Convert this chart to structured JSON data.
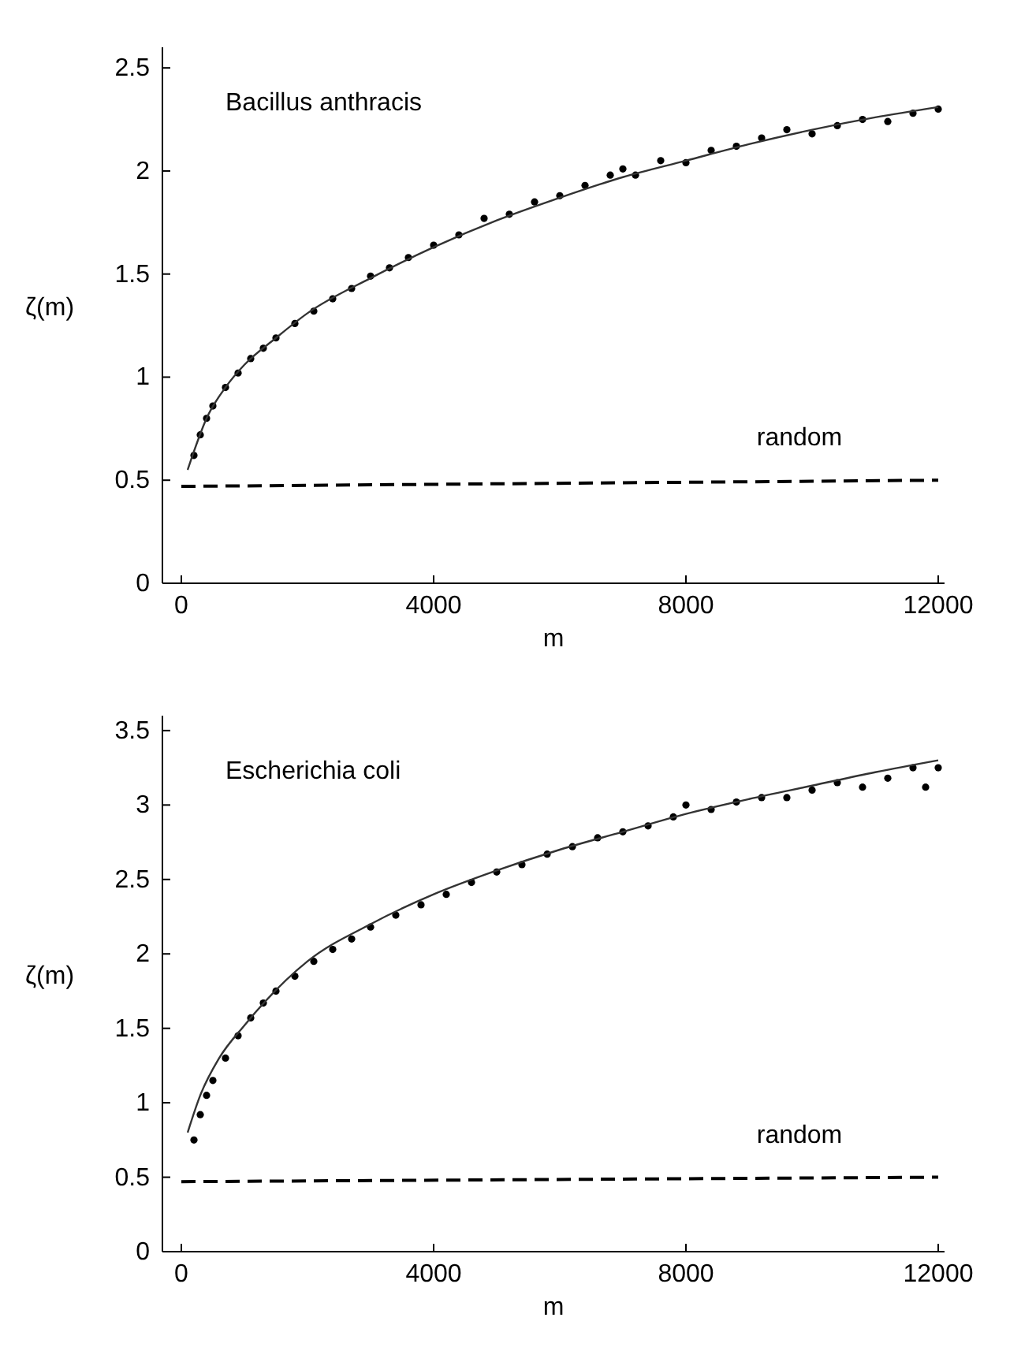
{
  "chart_data": [
    {
      "type": "scatter",
      "xlabel": "m",
      "ylabel": "ζ(m)",
      "xlim": [
        -300,
        12100
      ],
      "ylim": [
        0,
        2.6
      ],
      "xticks": [
        0,
        4000,
        8000,
        12000
      ],
      "yticks": [
        0,
        0.5,
        1,
        1.5,
        2,
        2.5
      ],
      "grid": false,
      "marker": "circle",
      "annotations": [
        "Bacillus anthracis",
        {
          "text": "random",
          "x": 9800,
          "y": 0.5
        }
      ],
      "series": [
        {
          "color": "#000000",
          "x": [
            200,
            300,
            400,
            500,
            700,
            900,
            1100,
            1300,
            1500,
            1800,
            2100,
            2400,
            2700,
            3000,
            3300,
            3600,
            4000,
            4400,
            4800,
            5200,
            5600,
            6000,
            6400,
            6800,
            7000,
            7200,
            7600,
            8000,
            8400,
            8800,
            9200,
            9600,
            10000,
            10400,
            10800,
            11200,
            11600,
            12000
          ],
          "values": [
            0.62,
            0.72,
            0.8,
            0.86,
            0.95,
            1.02,
            1.09,
            1.14,
            1.19,
            1.26,
            1.32,
            1.38,
            1.43,
            1.49,
            1.53,
            1.58,
            1.64,
            1.69,
            1.77,
            1.79,
            1.85,
            1.88,
            1.93,
            1.98,
            2.01,
            1.98,
            2.05,
            2.04,
            2.1,
            2.12,
            2.16,
            2.2,
            2.18,
            2.22,
            2.25,
            2.24,
            2.28,
            2.3
          ]
        },
        {
          "type": "line",
          "color": "#333333",
          "line_style": "solid",
          "marker": "none",
          "x": [
            100,
            200,
            400,
            700,
            1000,
            1500,
            2000,
            3000,
            4000,
            5000,
            6000,
            7000,
            8000,
            9000,
            10000,
            11000,
            12000
          ],
          "values": [
            0.55,
            0.64,
            0.8,
            0.95,
            1.06,
            1.19,
            1.31,
            1.48,
            1.63,
            1.76,
            1.87,
            1.97,
            2.05,
            2.13,
            2.2,
            2.26,
            2.31
          ]
        },
        {
          "type": "line",
          "color": "#000000",
          "line_style": "dashed",
          "marker": "none",
          "x": [
            0,
            12000
          ],
          "values": [
            0.47,
            0.5
          ]
        }
      ]
    },
    {
      "type": "scatter",
      "xlabel": "m",
      "ylabel": "ζ(m)",
      "xlim": [
        -300,
        12100
      ],
      "ylim": [
        0,
        3.6
      ],
      "xticks": [
        0,
        4000,
        8000,
        12000
      ],
      "yticks": [
        0,
        0.5,
        1,
        1.5,
        2,
        2.5,
        3,
        3.5
      ],
      "grid": false,
      "marker": "circle",
      "annotations": [
        "Escherichia  coli",
        {
          "text": "random",
          "x": 9800,
          "y": 0.5
        }
      ],
      "series": [
        {
          "color": "#000000",
          "x": [
            200,
            300,
            400,
            500,
            700,
            900,
            1100,
            1300,
            1500,
            1800,
            2100,
            2400,
            2700,
            3000,
            3400,
            3800,
            4200,
            4600,
            5000,
            5400,
            5800,
            6200,
            6600,
            7000,
            7400,
            7800,
            8000,
            8400,
            8800,
            9200,
            9600,
            10000,
            10400,
            10800,
            11200,
            11600,
            11800,
            12000
          ],
          "values": [
            0.75,
            0.92,
            1.05,
            1.15,
            1.3,
            1.45,
            1.57,
            1.67,
            1.75,
            1.85,
            1.95,
            2.03,
            2.1,
            2.18,
            2.26,
            2.33,
            2.4,
            2.48,
            2.55,
            2.6,
            2.67,
            2.72,
            2.78,
            2.82,
            2.86,
            2.92,
            3.0,
            2.97,
            3.02,
            3.05,
            3.05,
            3.1,
            3.15,
            3.12,
            3.18,
            3.25,
            3.12,
            3.25
          ]
        },
        {
          "type": "line",
          "color": "#333333",
          "line_style": "solid",
          "marker": "none",
          "x": [
            100,
            300,
            600,
            1000,
            2000,
            3000,
            4000,
            5000,
            6000,
            7000,
            8000,
            9000,
            10000,
            11000,
            12000
          ],
          "values": [
            0.8,
            1.05,
            1.3,
            1.52,
            1.95,
            2.2,
            2.4,
            2.56,
            2.7,
            2.82,
            2.94,
            3.04,
            3.13,
            3.22,
            3.3
          ]
        },
        {
          "type": "line",
          "color": "#000000",
          "line_style": "dashed",
          "marker": "none",
          "x": [
            0,
            12000
          ],
          "values": [
            0.47,
            0.5
          ]
        }
      ]
    }
  ]
}
